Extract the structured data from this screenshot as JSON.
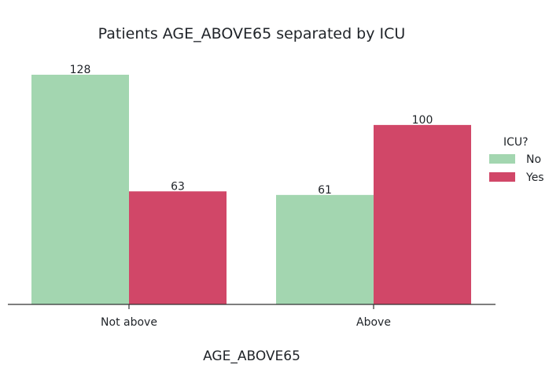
{
  "chart_data": {
    "type": "bar",
    "title": "Patients AGE_ABOVE65 separated by ICU",
    "xlabel": "AGE_ABOVE65",
    "ylabel": "",
    "categories": [
      "Not above",
      "Above"
    ],
    "series": [
      {
        "name": "No",
        "values": [
          128,
          61
        ],
        "color": "#a3d6b0"
      },
      {
        "name": "Yes",
        "values": [
          63,
          100
        ],
        "color": "#d14768"
      }
    ],
    "ylim": [
      0,
      134
    ],
    "grid": false,
    "legend": {
      "title": "ICU?",
      "placement": "right"
    },
    "axis_color": "#333333"
  }
}
